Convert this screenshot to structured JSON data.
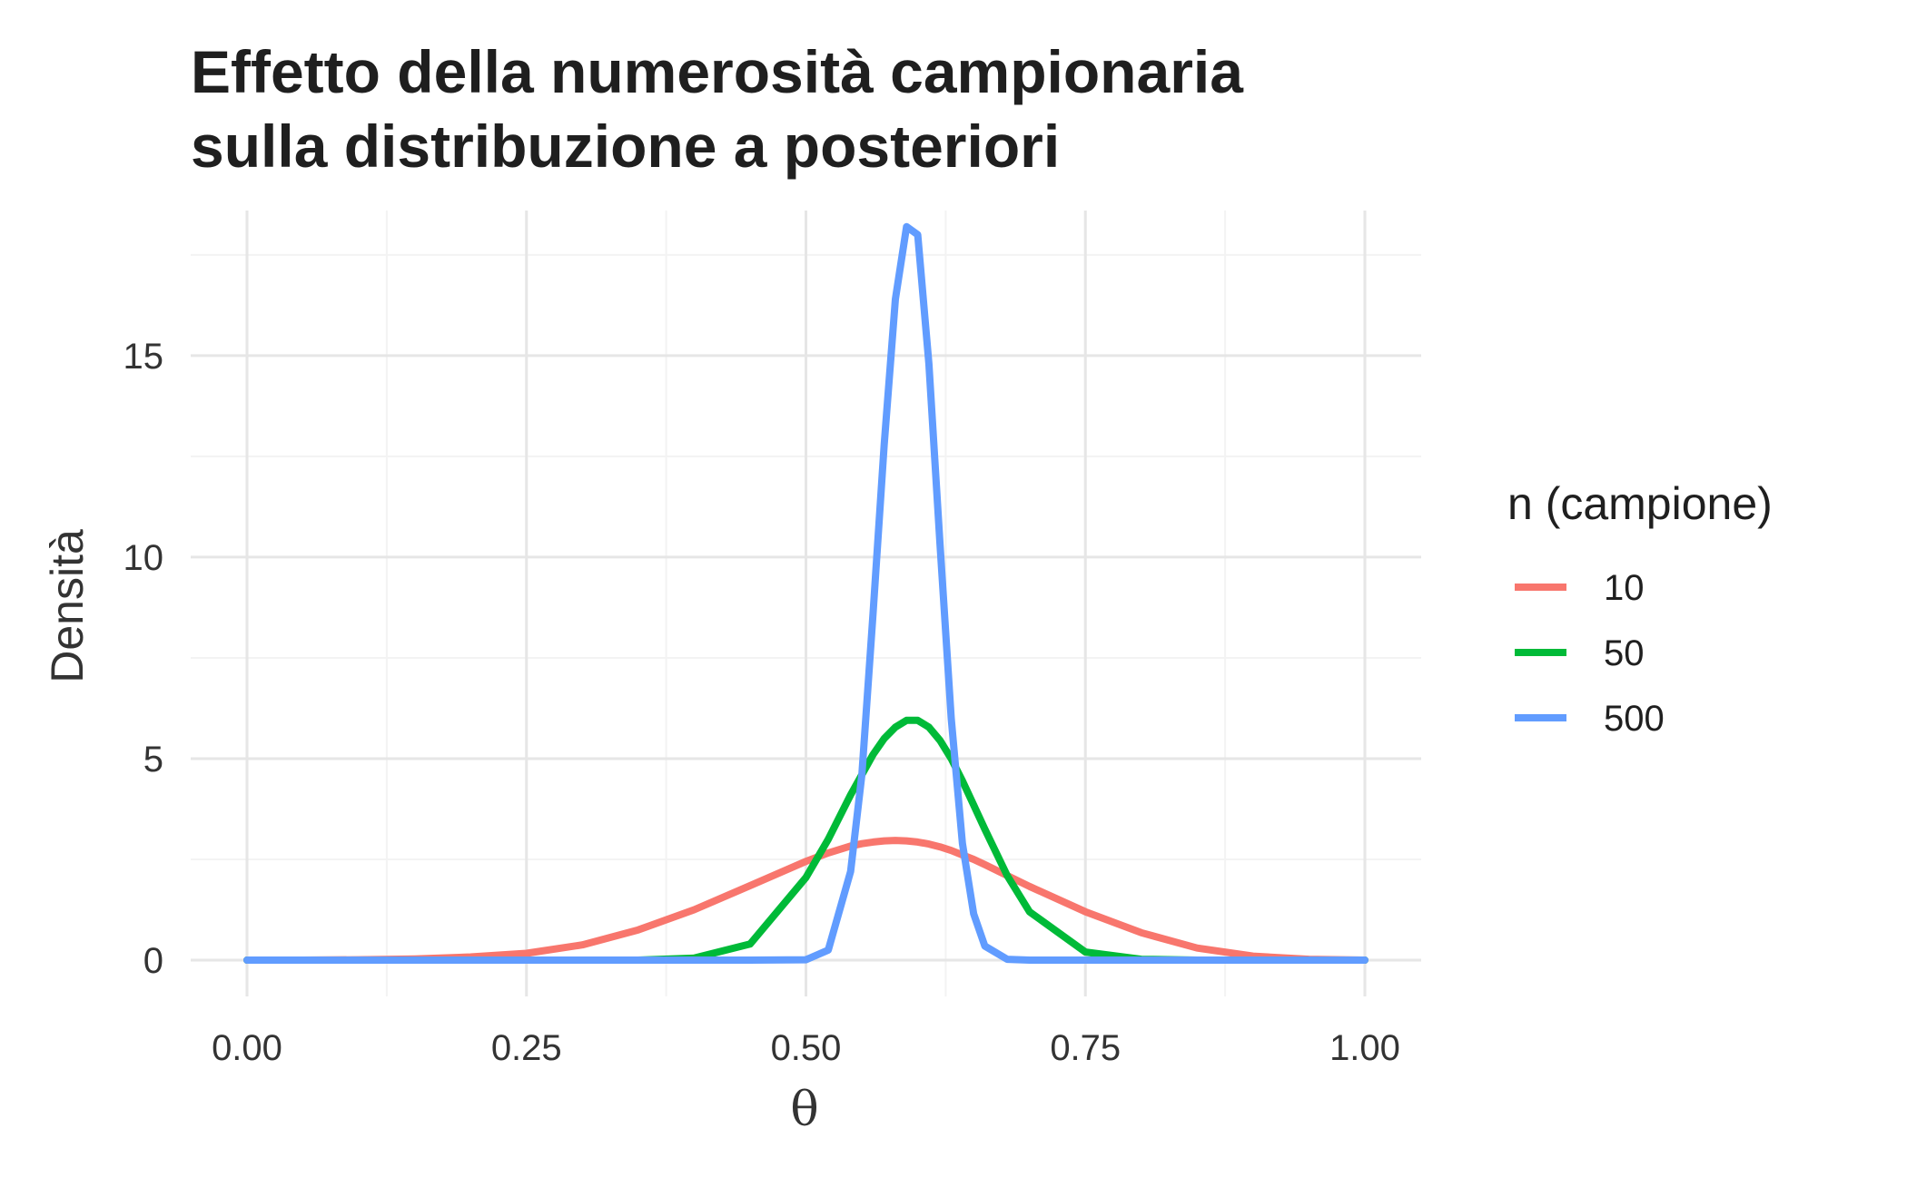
{
  "chart_data": {
    "type": "line",
    "title_lines": [
      "Effetto della numerosità campionaria",
      "sulla distribuzione a posteriori"
    ],
    "xlabel": "θ",
    "ylabel": "Densità",
    "xlim": [
      0,
      1
    ],
    "ylim": [
      -0.9,
      18.6
    ],
    "x_ticks": [
      0,
      0.25,
      0.5,
      0.75,
      1
    ],
    "x_tick_labels": [
      "0.00",
      "0.25",
      "0.50",
      "0.75",
      "1.00"
    ],
    "y_ticks": [
      0,
      5,
      10,
      15
    ],
    "y_tick_labels": [
      "0",
      "5",
      "10",
      "15"
    ],
    "grid": true,
    "legend": {
      "title": "n (campione)",
      "position": "right"
    },
    "x": [
      0,
      0.05,
      0.1,
      0.15,
      0.2,
      0.25,
      0.3,
      0.35,
      0.4,
      0.45,
      0.5,
      0.52,
      0.54,
      0.55,
      0.56,
      0.57,
      0.58,
      0.59,
      0.6,
      0.61,
      0.62,
      0.63,
      0.64,
      0.65,
      0.66,
      0.68,
      0.7,
      0.75,
      0.8,
      0.85,
      0.9,
      0.95,
      1
    ],
    "series": [
      {
        "name": "10",
        "color": "#F8766D",
        "values": [
          0,
          0,
          0.01,
          0.03,
          0.08,
          0.17,
          0.38,
          0.75,
          1.25,
          1.85,
          2.45,
          2.66,
          2.83,
          2.89,
          2.93,
          2.96,
          2.97,
          2.96,
          2.93,
          2.88,
          2.81,
          2.72,
          2.61,
          2.5,
          2.37,
          2.1,
          1.83,
          1.2,
          0.68,
          0.3,
          0.1,
          0.02,
          0
        ]
      },
      {
        "name": "50",
        "color": "#00BA38",
        "values": [
          0,
          0,
          0,
          0,
          0,
          0,
          0,
          0,
          0.05,
          0.4,
          2.05,
          3.0,
          4.1,
          4.6,
          5.1,
          5.5,
          5.78,
          5.95,
          5.95,
          5.78,
          5.45,
          5.0,
          4.45,
          3.85,
          3.25,
          2.1,
          1.2,
          0.2,
          0.02,
          0,
          0,
          0,
          0
        ]
      },
      {
        "name": "500",
        "color": "#619CFF",
        "values": [
          0,
          0,
          0,
          0,
          0,
          0,
          0,
          0,
          0,
          0,
          0.01,
          0.25,
          2.2,
          4.6,
          8.6,
          12.8,
          16.4,
          18.2,
          18.0,
          14.8,
          10.3,
          6.0,
          2.9,
          1.15,
          0.35,
          0.02,
          0,
          0,
          0,
          0,
          0,
          0,
          0
        ]
      }
    ]
  }
}
